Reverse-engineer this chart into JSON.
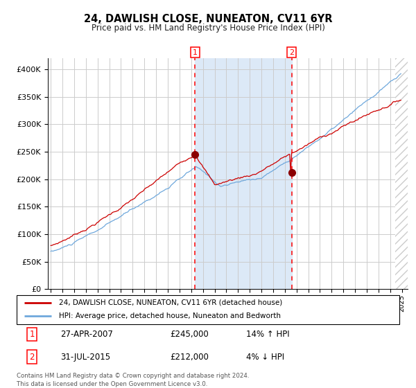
{
  "title": "24, DAWLISH CLOSE, NUNEATON, CV11 6YR",
  "subtitle": "Price paid vs. HM Land Registry's House Price Index (HPI)",
  "sale1_date": "27-APR-2007",
  "sale1_price": 245000,
  "sale1_hpi_pct": "14% ↑ HPI",
  "sale2_date": "31-JUL-2015",
  "sale2_price": 212000,
  "sale2_hpi_pct": "4% ↓ HPI",
  "legend_line1": "24, DAWLISH CLOSE, NUNEATON, CV11 6YR (detached house)",
  "legend_line2": "HPI: Average price, detached house, Nuneaton and Bedworth",
  "footer": "Contains HM Land Registry data © Crown copyright and database right 2024.\nThis data is licensed under the Open Government Licence v3.0.",
  "hpi_line_color": "#6fa8dc",
  "price_line_color": "#cc0000",
  "dot_color": "#8b0000",
  "x_start_year": 1995,
  "x_end_year": 2025,
  "y_min": 0,
  "y_max": 420000,
  "bg_color": "#ffffff",
  "grid_color": "#cccccc",
  "shade_color": "#dce9f7",
  "hatch_color": "#aaaaaa",
  "sale1_year": 2007.33,
  "sale2_year": 2015.58
}
